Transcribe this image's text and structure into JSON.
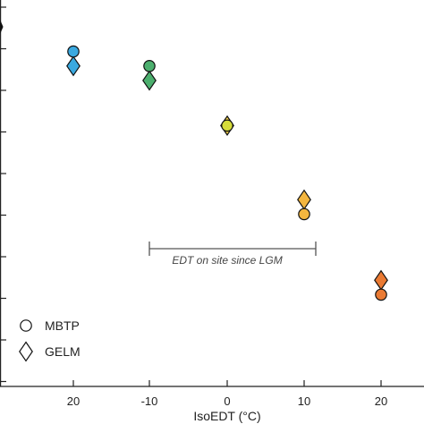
{
  "chart_data": {
    "type": "scatter",
    "xlabel": "IsoEDT (°C)",
    "x_tick_labels": [
      "20",
      "-10",
      "0",
      "10",
      "20"
    ],
    "series": [
      {
        "name": "MBTP",
        "marker": "circle",
        "points": [
          {
            "x": "20",
            "y": 1.1,
            "color": "#3aa9e0"
          },
          {
            "x": "-10",
            "y": 1.55,
            "color": "#4caf6e"
          },
          {
            "x": "0",
            "y": 3.4,
            "color": "#d6dc3a"
          },
          {
            "x": "10",
            "y": 6.15,
            "color": "#f4b63f"
          },
          {
            "x": "20",
            "y": 8.65,
            "color": "#ea7a33"
          }
        ]
      },
      {
        "name": "GELM",
        "marker": "diamond",
        "points": [
          {
            "x": "20",
            "y": 1.55,
            "color": "#3aa9e0"
          },
          {
            "x": "-10",
            "y": 2.0,
            "color": "#4caf6e"
          },
          {
            "x": "0",
            "y": 3.4,
            "color": "#f2d04a"
          },
          {
            "x": "10",
            "y": 5.7,
            "color": "#f4b63f"
          },
          {
            "x": "20",
            "y": 8.2,
            "color": "#ea7a33"
          }
        ]
      }
    ],
    "annotation": {
      "text": "EDT on site since LGM",
      "x_from": "-10",
      "x_to": "10"
    },
    "legend": {
      "position": "bottom-left",
      "items": [
        {
          "label": "MBTP",
          "marker": "circle"
        },
        {
          "label": "GELM",
          "marker": "diamond"
        }
      ]
    },
    "grid": false
  }
}
